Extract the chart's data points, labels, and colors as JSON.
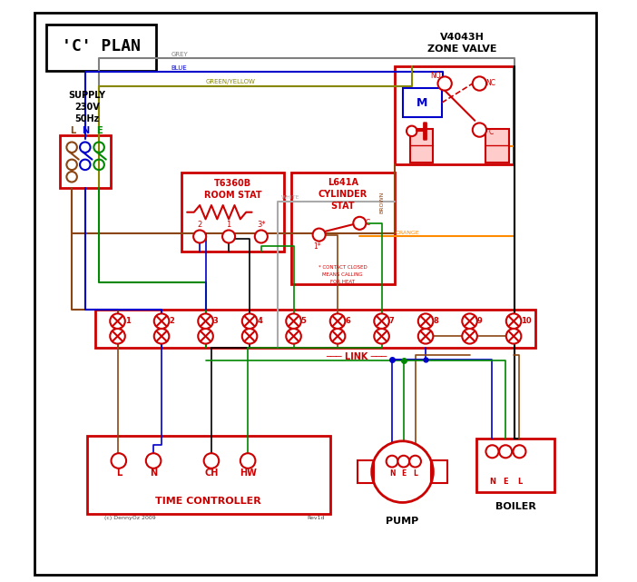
{
  "title": "'C' PLAN",
  "bg_color": "#ffffff",
  "border_color": "#000000",
  "red": "#cc0000",
  "blue": "#0000cc",
  "green": "#008800",
  "brown": "#8B4513",
  "grey": "#808080",
  "orange": "#FF8C00",
  "white_wire": "#aaaaaa",
  "black": "#000000",
  "pink": "#ffcccc",
  "terminal_labels": [
    "1",
    "2",
    "3",
    "4",
    "5",
    "6",
    "7",
    "8",
    "9",
    "10"
  ],
  "time_controller_label": "TIME CONTROLLER",
  "pump_label": "PUMP",
  "boiler_label": "BOILER",
  "tc_terminals": [
    "L",
    "N",
    "CH",
    "HW"
  ],
  "footnote": "(c) DennyOz 2009",
  "revid": "Rev1d"
}
